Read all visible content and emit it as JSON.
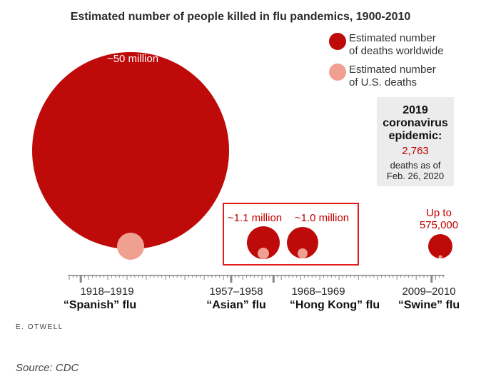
{
  "chart_data": {
    "type": "bubble",
    "title": "Estimated number of people killed in flu pandemics, 1900-2010",
    "axis": {
      "xlim": [
        1915,
        2012
      ]
    },
    "legend": [
      {
        "label_line1": "Estimated number",
        "label_line2": "of deaths worldwide",
        "color": "#bf0a0a"
      },
      {
        "label_line1": "Estimated number",
        "label_line2": "of U.S. deaths",
        "color": "#f0a090"
      }
    ],
    "pandemics": [
      {
        "year_x": 1918.5,
        "years": "1918–1919",
        "name": "“Spanish” flu",
        "worldwide_label": "~50 million",
        "worldwide_deaths": 50000000,
        "us_deaths": 675000
      },
      {
        "year_x": 1957.5,
        "years": "1957–1958",
        "name": "“Asian” flu",
        "worldwide_label": "~1.1 million",
        "worldwide_deaths": 1100000,
        "us_deaths": 116000
      },
      {
        "year_x": 1968.5,
        "years": "1968–1969",
        "name": "“Hong Kong” flu",
        "worldwide_label": "~1.0 million",
        "worldwide_deaths": 1000000,
        "us_deaths": 100000
      },
      {
        "year_x": 2009.5,
        "years": "2009–2010",
        "name": "“Swine” flu",
        "worldwide_label_line1": "Up to",
        "worldwide_label_line2": "575,000",
        "worldwide_deaths": 575000,
        "us_deaths": 12000
      }
    ],
    "callout_box": {
      "line1": "2019",
      "line2": "coronavirus",
      "line3": "epidemic:",
      "number": "2,763",
      "sub1": "deaths as of",
      "sub2": "Feb. 26, 2020"
    },
    "credit": "E. OTWELL",
    "source": "Source: CDC",
    "colors": {
      "world": "#bf0a0a",
      "us": "#f0a090",
      "highlight": "#e31b1b",
      "box_bg": "#ececec",
      "axis": "#888888"
    }
  }
}
